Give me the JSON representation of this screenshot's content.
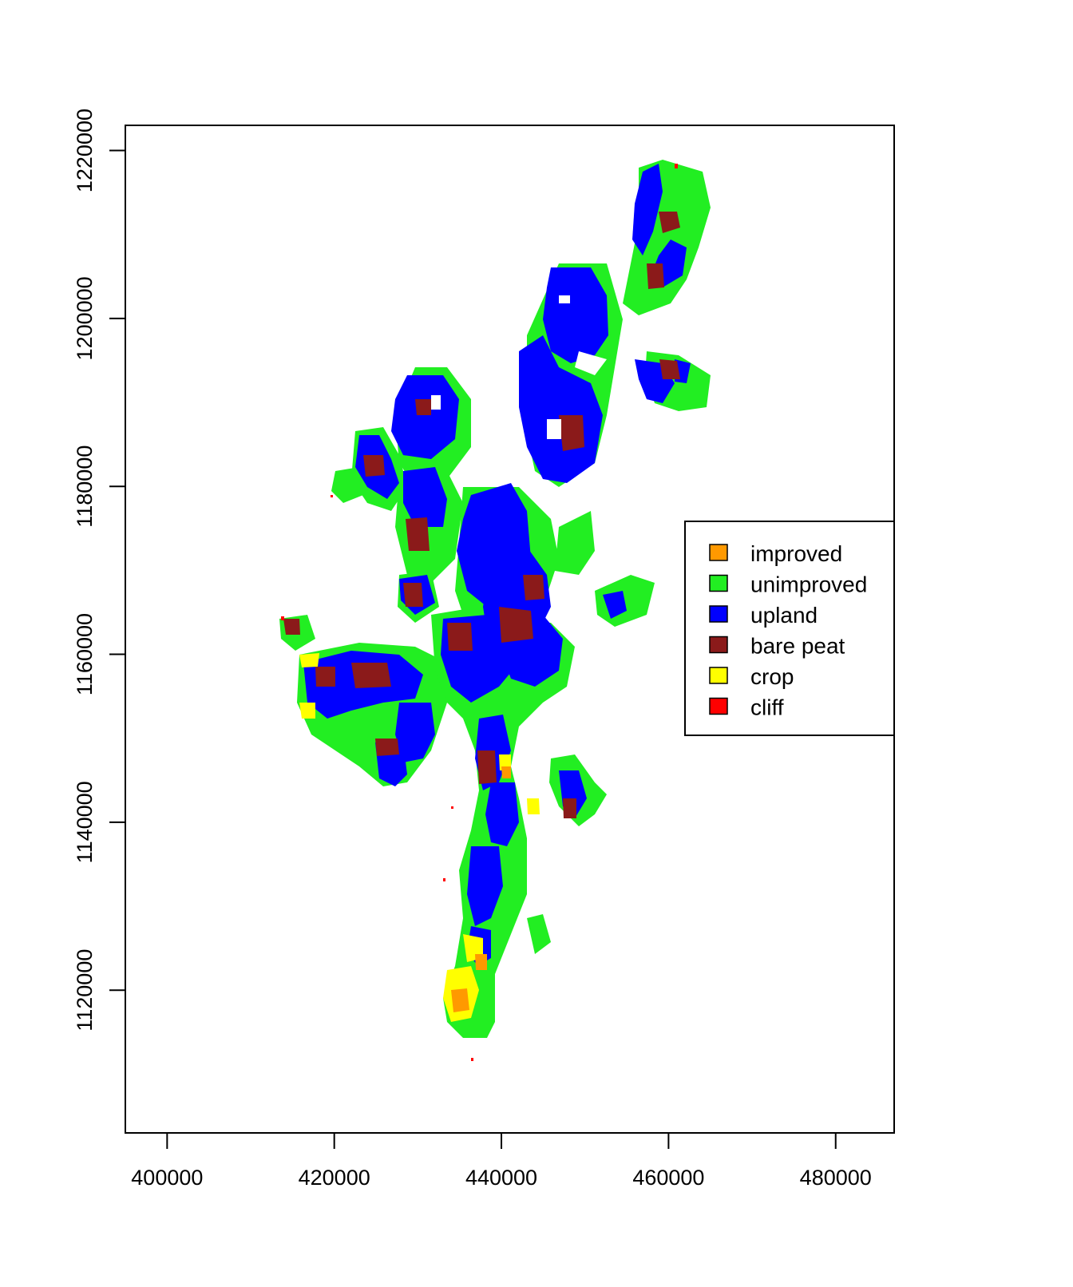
{
  "map": {
    "x_ticks": [
      "400000",
      "420000",
      "440000",
      "460000",
      "480000"
    ],
    "y_ticks": [
      "1120000",
      "1140000",
      "1160000",
      "1180000",
      "1200000",
      "1220000"
    ],
    "x_range": [
      395000,
      487000
    ],
    "y_range": [
      1103000,
      1223000
    ],
    "raster_note_free": true
  },
  "legend": {
    "placement": "right",
    "items": [
      {
        "label": "improved",
        "color": "#FF9900"
      },
      {
        "label": "unimproved",
        "color": "#22EE22"
      },
      {
        "label": "upland",
        "color": "#0000FF"
      },
      {
        "label": "bare peat",
        "color": "#8B1A1A"
      },
      {
        "label": "crop",
        "color": "#FFFF00"
      },
      {
        "label": "cliff",
        "color": "#FF0000"
      }
    ]
  },
  "colors": {
    "improved": "#FF9900",
    "unimproved": "#22EE22",
    "upland": "#0000FF",
    "bare_peat": "#8B1A1A",
    "crop": "#FFFF00",
    "cliff": "#FF0000"
  }
}
